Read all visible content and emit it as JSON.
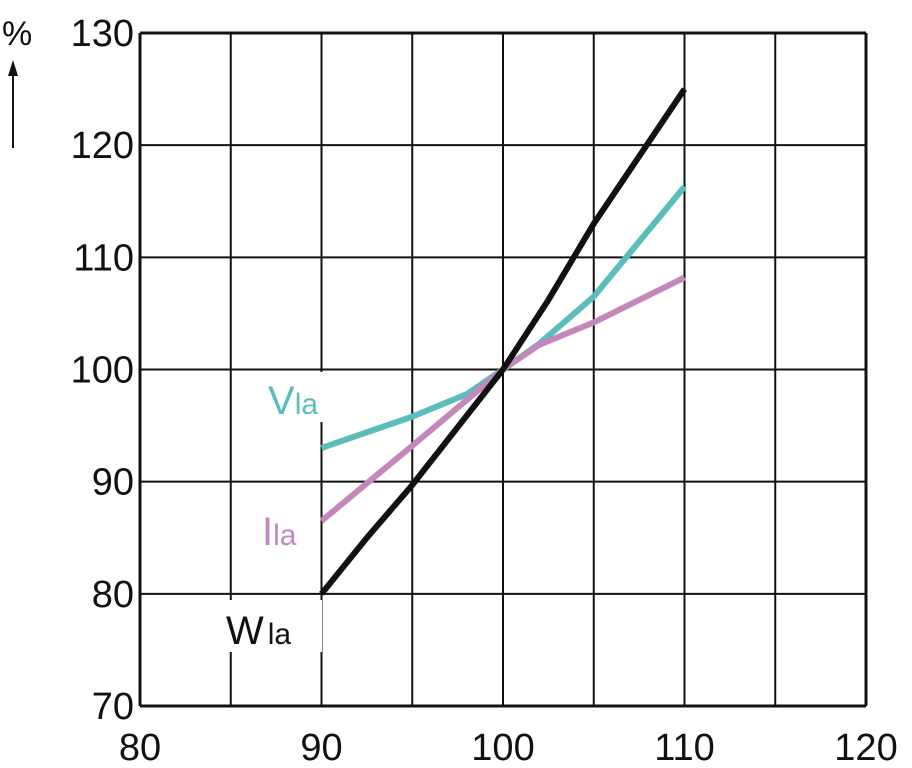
{
  "chart_data": {
    "type": "line",
    "title": "",
    "xlabel": "",
    "ylabel": "%",
    "xlim": [
      80,
      120
    ],
    "ylim": [
      70,
      130
    ],
    "x_ticks": [
      "80",
      "90",
      "100",
      "110",
      "120"
    ],
    "y_ticks": [
      "70",
      "80",
      "90",
      "100",
      "110",
      "120",
      "130"
    ],
    "x_grid_step": 5,
    "y_grid_step": 10,
    "grid": true,
    "series": [
      {
        "name": "Vla",
        "label_main": "V",
        "label_sub": "la",
        "color": "#5bbcbc",
        "x": [
          90,
          95,
          98,
          100,
          102,
          105,
          110
        ],
        "y": [
          93,
          95.8,
          97.8,
          100,
          102.3,
          106.5,
          116.3
        ]
      },
      {
        "name": "Ila",
        "label_main": "I",
        "label_sub": "la",
        "color": "#c487bd",
        "x": [
          90,
          95,
          100,
          102,
          105,
          110
        ],
        "y": [
          86.5,
          93.2,
          100,
          102.2,
          104.2,
          108.2
        ]
      },
      {
        "name": "Wla",
        "label_main": "W",
        "label_sub": "la",
        "color": "#111111",
        "x": [
          90,
          92.5,
          95,
          100,
          102.5,
          105,
          110
        ],
        "y": [
          80,
          85,
          89.7,
          100,
          106.2,
          113,
          125
        ]
      }
    ]
  }
}
